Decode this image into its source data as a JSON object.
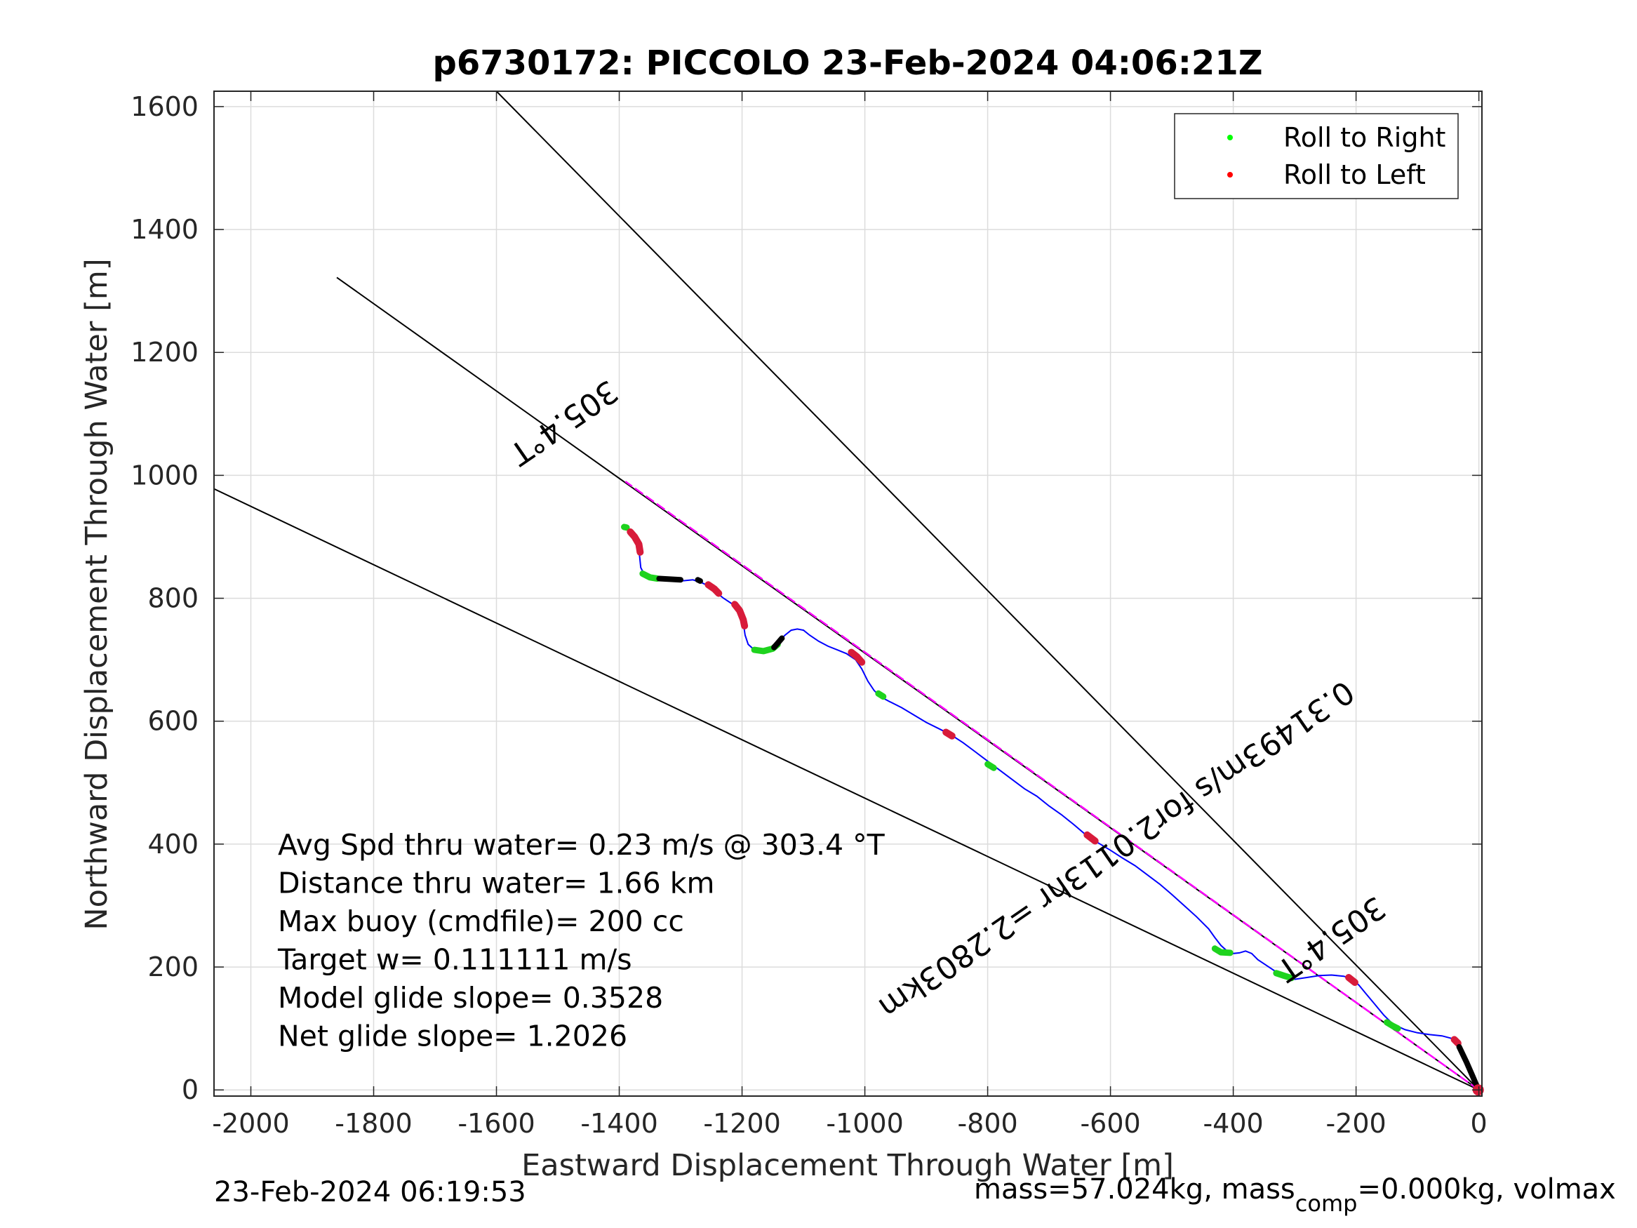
{
  "chart_data": {
    "type": "line",
    "title": "p6730172: PICCOLO 23-Feb-2024 04:06:21Z",
    "xlabel": "Eastward Displacement Through Water [m]",
    "ylabel": "Northward Displacement Through Water [m]",
    "xlim": [
      -2060,
      5
    ],
    "ylim": [
      -10,
      1625
    ],
    "xticks": [
      -2000,
      -1800,
      -1600,
      -1400,
      -1200,
      -1000,
      -800,
      -600,
      -400,
      -200,
      0
    ],
    "yticks": [
      0,
      200,
      400,
      600,
      800,
      1000,
      1200,
      1400,
      1600
    ],
    "xtick_labels": [
      "-2000",
      "-1800",
      "-1600",
      "-1400",
      "-1200",
      "-1000",
      "-800",
      "-600",
      "-400",
      "-200",
      "0"
    ],
    "ytick_labels": [
      "0",
      "200",
      "400",
      "600",
      "800",
      "1000",
      "1200",
      "1400",
      "1600"
    ],
    "grid": true,
    "legend_position": "top-right",
    "legend": [
      {
        "label": "Roll to Right",
        "color": "#00ff00"
      },
      {
        "label": "Roll to Left",
        "color": "#ff0000"
      }
    ],
    "track": {
      "name": "glider track",
      "color": "#0000ff",
      "x": [
        -1390,
        -1380,
        -1370,
        -1367,
        -1365,
        -1360,
        -1350,
        -1335,
        -1320,
        -1300,
        -1280,
        -1265,
        -1250,
        -1240,
        -1230,
        -1215,
        -1205,
        -1198,
        -1195,
        -1190,
        -1180,
        -1165,
        -1150,
        -1140,
        -1130,
        -1120,
        -1110,
        -1100,
        -1090,
        -1075,
        -1060,
        -1045,
        -1030,
        -1015,
        -1005,
        -995,
        -985,
        -975,
        -960,
        -940,
        -920,
        -900,
        -880,
        -860,
        -840,
        -820,
        -800,
        -780,
        -760,
        -740,
        -720,
        -700,
        -680,
        -660,
        -640,
        -620,
        -600,
        -580,
        -560,
        -540,
        -520,
        -500,
        -480,
        -460,
        -440,
        -430,
        -420,
        -410,
        -400,
        -390,
        -380,
        -370,
        -360,
        -345,
        -330,
        -315,
        -300,
        -280,
        -260,
        -240,
        -220,
        -205,
        -195,
        -185,
        -170,
        -155,
        -140,
        -120,
        -100,
        -80,
        -60,
        -45,
        -38,
        -32,
        -25,
        -18,
        -12,
        -6,
        -2
      ],
      "y": [
        915,
        905,
        890,
        870,
        850,
        840,
        835,
        832,
        830,
        828,
        830,
        825,
        818,
        808,
        800,
        790,
        778,
        760,
        740,
        725,
        716,
        715,
        720,
        730,
        740,
        748,
        750,
        748,
        740,
        730,
        722,
        716,
        710,
        700,
        685,
        665,
        650,
        640,
        632,
        622,
        610,
        598,
        588,
        578,
        565,
        550,
        535,
        520,
        505,
        490,
        478,
        462,
        448,
        432,
        415,
        402,
        390,
        377,
        365,
        350,
        335,
        318,
        300,
        282,
        262,
        248,
        235,
        226,
        222,
        223,
        226,
        222,
        212,
        202,
        192,
        185,
        180,
        183,
        186,
        187,
        185,
        180,
        170,
        158,
        140,
        122,
        107,
        98,
        93,
        90,
        88,
        84,
        78,
        70,
        55,
        40,
        25,
        10,
        2
      ]
    },
    "roll_right_segments": [
      {
        "x": [
          -1392,
          -1388
        ],
        "y": [
          916,
          915
        ]
      },
      {
        "x": [
          -1362,
          -1350,
          -1338
        ],
        "y": [
          840,
          834,
          832
        ]
      },
      {
        "x": [
          -1180,
          -1165,
          -1150,
          -1142
        ],
        "y": [
          716,
          714,
          718,
          725
        ]
      },
      {
        "x": [
          -978,
          -970
        ],
        "y": [
          645,
          640
        ]
      },
      {
        "x": [
          -800,
          -790
        ],
        "y": [
          530,
          524
        ]
      },
      {
        "x": [
          -430,
          -420,
          -405
        ],
        "y": [
          230,
          224,
          223
        ]
      },
      {
        "x": [
          -330,
          -318,
          -305
        ],
        "y": [
          190,
          186,
          182
        ]
      },
      {
        "x": [
          -150,
          -140,
          -132
        ],
        "y": [
          110,
          104,
          100
        ]
      }
    ],
    "roll_left_segments": [
      {
        "x": [
          -1382,
          -1375,
          -1368,
          -1366
        ],
        "y": [
          908,
          900,
          888,
          875
        ]
      },
      {
        "x": [
          -1255,
          -1245,
          -1238
        ],
        "y": [
          822,
          815,
          808
        ]
      },
      {
        "x": [
          -1212,
          -1204,
          -1198,
          -1196
        ],
        "y": [
          790,
          780,
          765,
          755
        ]
      },
      {
        "x": [
          -1022,
          -1013,
          -1005
        ],
        "y": [
          712,
          705,
          696
        ]
      },
      {
        "x": [
          -868,
          -858
        ],
        "y": [
          582,
          576
        ]
      },
      {
        "x": [
          -638,
          -625
        ],
        "y": [
          415,
          405
        ]
      },
      {
        "x": [
          -212,
          -202
        ],
        "y": [
          183,
          175
        ]
      },
      {
        "x": [
          -40,
          -34
        ],
        "y": [
          82,
          76
        ]
      }
    ],
    "dive_segments": [
      {
        "x": [
          -1335,
          -1300
        ],
        "y": [
          832,
          830
        ]
      },
      {
        "x": [
          -1272,
          -1268
        ],
        "y": [
          830,
          828
        ]
      },
      {
        "x": [
          -1148,
          -1135
        ],
        "y": [
          720,
          735
        ]
      },
      {
        "x": [
          -32,
          -20,
          -10,
          -4
        ],
        "y": [
          70,
          45,
          22,
          8
        ]
      }
    ],
    "reference_lines": [
      {
        "name": "heading line",
        "color": "#ff00ff",
        "x": [
          0,
          -1390
        ],
        "y": [
          0,
          990
        ]
      },
      {
        "name": "heading line ext",
        "color": "#000000",
        "x": [
          0,
          -1860
        ],
        "y": [
          0,
          1322
        ]
      },
      {
        "name": "upper bound",
        "color": "#000000",
        "x": [
          0,
          -1600
        ],
        "y": [
          0,
          1625
        ]
      },
      {
        "name": "lower bound",
        "color": "#000000",
        "x": [
          0,
          -2060
        ],
        "y": [
          0,
          978
        ]
      }
    ],
    "annotations": [
      {
        "text": "305.4°T",
        "x": -1500,
        "y": 1100,
        "angle_deg": 145.4
      },
      {
        "text": "305.4°T",
        "x": -250,
        "y": 260,
        "angle_deg": 145.4
      },
      {
        "text": "0.31493m/s for2.0113hr =2.2803km",
        "x": -600,
        "y": 405,
        "angle_deg": 145.4
      }
    ],
    "stats": [
      "Avg Spd thru water=  0.23 m/s @ 303.4 °T",
      "Distance thru water=  1.66 km",
      "Max buoy (cmdfile)= 200 cc",
      "Target w= 0.111111 m/s",
      "Model glide slope= 0.3528",
      "Net glide slope= 1.2026"
    ],
    "footer_left": "23-Feb-2024 06:19:53",
    "footer_right": {
      "text1": "mass=57.024kg, mass",
      "sub": "comp",
      "text2": "=0.000kg, volmax"
    }
  }
}
